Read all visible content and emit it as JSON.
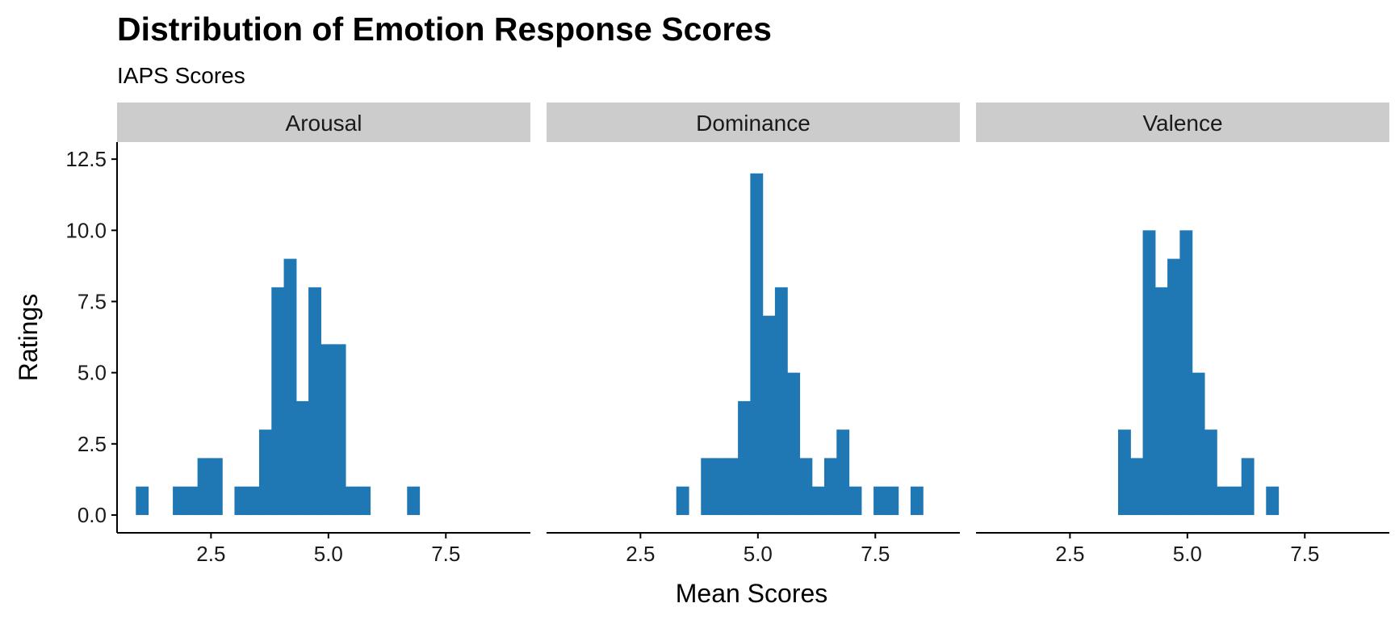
{
  "colors": {
    "bar": "#1f77b4",
    "strip": "#cccccc",
    "axis": "#000000"
  },
  "chart_data": {
    "type": "bar",
    "title": "Distribution of Emotion Response Scores",
    "subtitle": "IAPS Scores",
    "xlabel": "Mean Scores",
    "ylabel": "Ratings",
    "xlim": [
      0.5,
      9.3
    ],
    "ylim": [
      -0.625,
      13.1
    ],
    "x_ticks": [
      "2.5",
      "5.0",
      "7.5"
    ],
    "y_ticks": [
      "0.0",
      "2.5",
      "5.0",
      "7.5",
      "10.0",
      "12.5"
    ],
    "grid": false,
    "bin_width": 0.2625,
    "bin_start": 0.9,
    "panels": [
      {
        "name": "Arousal",
        "counts": [
          1,
          0,
          0,
          1,
          1,
          2,
          2,
          0,
          1,
          1,
          3,
          8,
          9,
          4,
          8,
          6,
          6,
          1,
          1,
          0,
          0,
          0,
          1
        ]
      },
      {
        "name": "Dominance",
        "counts": [
          0,
          0,
          0,
          0,
          0,
          0,
          0,
          0,
          0,
          1,
          0,
          2,
          2,
          2,
          4,
          12,
          7,
          8,
          5,
          2,
          1,
          2,
          3,
          1,
          0,
          1,
          1,
          0,
          1
        ]
      },
      {
        "name": "Valence",
        "counts": [
          0,
          0,
          0,
          0,
          0,
          0,
          0,
          0,
          0,
          0,
          3,
          2,
          10,
          8,
          9,
          10,
          5,
          3,
          1,
          1,
          2,
          0,
          1
        ]
      }
    ]
  }
}
